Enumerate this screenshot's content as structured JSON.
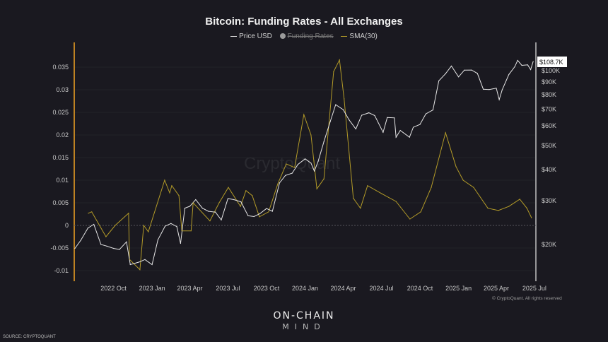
{
  "title": "Bitcoin: Funding Rates - All Exchanges",
  "legend": [
    {
      "label": "Price USD",
      "color": "#e6e6e6",
      "visible": true
    },
    {
      "label": "Funding Rates",
      "color": "#9a9a9a",
      "visible": false
    },
    {
      "label": "SMA(30)",
      "color": "#b39b28",
      "visible": true
    }
  ],
  "watermark": "CryptoQuant",
  "copyright": "© CryptoQuant. All rights reserved",
  "logo": {
    "line1": "ON-CHAIN",
    "line2": "MIND"
  },
  "source": "SOURCE: CRYPTOQUANT",
  "colors": {
    "background": "#1a1920",
    "left_axis": "#f5a623",
    "price": "#e6e6e6",
    "sma": "#b39b28"
  },
  "chart_data": {
    "type": "line",
    "title": "Bitcoin: Funding Rates - All Exchanges",
    "x_ticks": [
      "2022 Oct",
      "2023 Jan",
      "2023 Apr",
      "2023 Jul",
      "2023 Oct",
      "2024 Jan",
      "2024 Apr",
      "2024 Jul",
      "2024 Oct",
      "2025 Jan",
      "2025 Apr",
      "2025 Jul"
    ],
    "left_axis": {
      "ticks": [
        "0.035",
        "0.03",
        "0.025",
        "0.02",
        "0.015",
        "0.01",
        "0.005",
        "0",
        "-0.005",
        "-0.01"
      ],
      "ylim": [
        -0.0115,
        0.037
      ]
    },
    "right_axis": {
      "scale": "log",
      "ticks": [
        "$100K",
        "$90K",
        "$80K",
        "$70K",
        "$60K",
        "$50K",
        "$40K",
        "$30K",
        "$20K"
      ],
      "last_value_label": "$108.7K"
    },
    "grid": true,
    "legend_position": "top",
    "series": [
      {
        "name": "Price USD",
        "axis": "right",
        "unit": "USD thousands",
        "points": [
          [
            "2022-07-01",
            19.3
          ],
          [
            "2022-07-15",
            20.8
          ],
          [
            "2022-08-01",
            23.3
          ],
          [
            "2022-08-15",
            24.1
          ],
          [
            "2022-09-01",
            20.0
          ],
          [
            "2022-09-15",
            19.7
          ],
          [
            "2022-10-01",
            19.3
          ],
          [
            "2022-10-15",
            19.1
          ],
          [
            "2022-11-01",
            20.5
          ],
          [
            "2022-11-10",
            16.6
          ],
          [
            "2022-12-01",
            17.0
          ],
          [
            "2022-12-15",
            17.4
          ],
          [
            "2023-01-01",
            16.6
          ],
          [
            "2023-01-15",
            20.9
          ],
          [
            "2023-02-01",
            23.7
          ],
          [
            "2023-02-15",
            24.3
          ],
          [
            "2023-03-01",
            23.6
          ],
          [
            "2023-03-10",
            20.2
          ],
          [
            "2023-03-20",
            28.0
          ],
          [
            "2023-04-01",
            28.5
          ],
          [
            "2023-04-15",
            30.3
          ],
          [
            "2023-05-01",
            28.0
          ],
          [
            "2023-05-15",
            27.2
          ],
          [
            "2023-06-01",
            27.0
          ],
          [
            "2023-06-15",
            25.1
          ],
          [
            "2023-07-01",
            30.6
          ],
          [
            "2023-07-15",
            30.3
          ],
          [
            "2023-08-01",
            29.7
          ],
          [
            "2023-08-18",
            26.1
          ],
          [
            "2023-09-01",
            25.9
          ],
          [
            "2023-09-15",
            26.6
          ],
          [
            "2023-10-01",
            27.9
          ],
          [
            "2023-10-15",
            27.2
          ],
          [
            "2023-11-01",
            35.4
          ],
          [
            "2023-11-15",
            37.9
          ],
          [
            "2023-12-01",
            38.7
          ],
          [
            "2023-12-15",
            42.0
          ],
          [
            "2024-01-01",
            44.2
          ],
          [
            "2024-01-15",
            42.5
          ],
          [
            "2024-01-23",
            39.5
          ],
          [
            "2024-02-01",
            43.1
          ],
          [
            "2024-02-15",
            51.9
          ],
          [
            "2024-03-01",
            62.4
          ],
          [
            "2024-03-14",
            73.0
          ],
          [
            "2024-04-01",
            69.7
          ],
          [
            "2024-04-15",
            63.4
          ],
          [
            "2024-05-01",
            58.3
          ],
          [
            "2024-05-15",
            66.2
          ],
          [
            "2024-06-01",
            67.7
          ],
          [
            "2024-06-15",
            66.0
          ],
          [
            "2024-07-05",
            56.5
          ],
          [
            "2024-07-15",
            64.8
          ],
          [
            "2024-08-01",
            64.6
          ],
          [
            "2024-08-05",
            54.0
          ],
          [
            "2024-08-15",
            57.5
          ],
          [
            "2024-09-06",
            54.0
          ],
          [
            "2024-09-15",
            59.2
          ],
          [
            "2024-10-01",
            60.8
          ],
          [
            "2024-10-15",
            67.0
          ],
          [
            "2024-11-01",
            69.5
          ],
          [
            "2024-11-15",
            91.0
          ],
          [
            "2024-12-01",
            97.2
          ],
          [
            "2024-12-15",
            104.4
          ],
          [
            "2025-01-01",
            94.4
          ],
          [
            "2025-01-15",
            100.5
          ],
          [
            "2025-02-01",
            100.6
          ],
          [
            "2025-02-15",
            97.5
          ],
          [
            "2025-03-01",
            84.2
          ],
          [
            "2025-03-15",
            84.0
          ],
          [
            "2025-04-01",
            85.0
          ],
          [
            "2025-04-08",
            76.5
          ],
          [
            "2025-04-15",
            83.7
          ],
          [
            "2025-05-01",
            96.5
          ],
          [
            "2025-05-15",
            103.7
          ],
          [
            "2025-05-22",
            110.0
          ],
          [
            "2025-06-01",
            105.0
          ],
          [
            "2025-06-15",
            105.5
          ],
          [
            "2025-06-22",
            101.0
          ],
          [
            "2025-06-28",
            108.7
          ]
        ]
      },
      {
        "name": "SMA(30)",
        "axis": "left",
        "points": [
          [
            "2022-08-02",
            0.0027
          ],
          [
            "2022-08-10",
            0.003
          ],
          [
            "2022-09-13",
            -0.0025
          ],
          [
            "2022-10-05",
            0.0
          ],
          [
            "2022-11-06",
            0.0027
          ],
          [
            "2022-11-08",
            -0.0075
          ],
          [
            "2022-12-03",
            -0.0098
          ],
          [
            "2022-12-12",
            0.0
          ],
          [
            "2022-12-23",
            -0.0014
          ],
          [
            "2023-01-31",
            0.01
          ],
          [
            "2023-02-12",
            0.0072
          ],
          [
            "2023-02-17",
            0.0088
          ],
          [
            "2023-03-06",
            0.0066
          ],
          [
            "2023-03-13",
            -0.0012
          ],
          [
            "2023-04-04",
            -0.0012
          ],
          [
            "2023-04-09",
            0.005
          ],
          [
            "2023-05-19",
            0.001
          ],
          [
            "2023-06-10",
            0.005
          ],
          [
            "2023-07-02",
            0.0084
          ],
          [
            "2023-07-31",
            0.0042
          ],
          [
            "2023-08-13",
            0.0077
          ],
          [
            "2023-08-28",
            0.0066
          ],
          [
            "2023-09-14",
            0.0019
          ],
          [
            "2023-10-06",
            0.003
          ],
          [
            "2023-10-28",
            0.0092
          ],
          [
            "2023-11-17",
            0.0136
          ],
          [
            "2023-12-07",
            0.0128
          ],
          [
            "2023-12-29",
            0.0245
          ],
          [
            "2024-01-15",
            0.02
          ],
          [
            "2024-01-29",
            0.0081
          ],
          [
            "2024-02-15",
            0.0103
          ],
          [
            "2024-03-09",
            0.034
          ],
          [
            "2024-03-23",
            0.0366
          ],
          [
            "2024-04-03",
            0.028
          ],
          [
            "2024-04-25",
            0.006
          ],
          [
            "2024-05-12",
            0.0038
          ],
          [
            "2024-05-29",
            0.0088
          ],
          [
            "2024-07-02",
            0.007
          ],
          [
            "2024-08-05",
            0.0053
          ],
          [
            "2024-09-07",
            0.0014
          ],
          [
            "2024-10-03",
            0.003
          ],
          [
            "2024-10-28",
            0.0084
          ],
          [
            "2024-12-01",
            0.0205
          ],
          [
            "2024-12-26",
            0.013
          ],
          [
            "2025-01-12",
            0.01
          ],
          [
            "2025-02-06",
            0.0084
          ],
          [
            "2025-03-12",
            0.0038
          ],
          [
            "2025-04-06",
            0.0033
          ],
          [
            "2025-05-01",
            0.0042
          ],
          [
            "2025-05-27",
            0.0058
          ],
          [
            "2025-06-13",
            0.0038
          ],
          [
            "2025-06-24",
            0.0017
          ]
        ]
      }
    ]
  }
}
